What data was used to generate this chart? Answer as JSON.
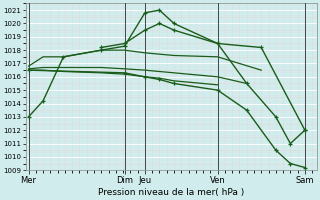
{
  "xlabel": "Pression niveau de la mer( hPa )",
  "bg_color": "#d0ecec",
  "grid_color": "#ffffff",
  "grid_minor_color": "#e8d8d8",
  "line_color": "#1a5c1a",
  "ylim": [
    1009,
    1021.5
  ],
  "yticks": [
    1009,
    1010,
    1011,
    1012,
    1013,
    1014,
    1015,
    1016,
    1017,
    1018,
    1019,
    1020,
    1021
  ],
  "xtick_labels": [
    "Mer",
    "Dim",
    "Jeu",
    "Ven",
    "Sam"
  ],
  "xtick_positions": [
    0.0,
    3.3,
    4.0,
    6.5,
    9.5
  ],
  "vline_positions": [
    0.0,
    3.3,
    4.0,
    6.5,
    9.5
  ],
  "xlim": [
    -0.1,
    9.9
  ],
  "series": [
    {
      "x": [
        0.0,
        0.5,
        1.2,
        2.5,
        3.3,
        4.0,
        4.5,
        5.0,
        6.5,
        8.0,
        9.5
      ],
      "y": [
        1013.0,
        1014.2,
        1017.5,
        1018.0,
        1018.3,
        1020.8,
        1021.0,
        1020.0,
        1018.5,
        1018.2,
        1012.0
      ],
      "marker": true,
      "lw": 1.0
    },
    {
      "x": [
        0.0,
        3.3,
        4.0,
        4.5,
        5.0,
        6.5,
        7.5,
        8.5,
        9.0,
        9.5
      ],
      "y": [
        1016.5,
        1016.3,
        1016.0,
        1015.8,
        1015.5,
        1015.0,
        1013.5,
        1010.5,
        1009.5,
        1009.2
      ],
      "marker": true,
      "lw": 1.0
    },
    {
      "x": [
        0.0,
        0.5,
        1.2,
        2.5,
        3.3,
        4.0,
        4.5,
        5.0,
        6.5,
        8.0
      ],
      "y": [
        1016.8,
        1017.5,
        1017.5,
        1018.0,
        1018.0,
        1017.8,
        1017.7,
        1017.6,
        1017.5,
        1016.5
      ],
      "marker": false,
      "lw": 0.9
    },
    {
      "x": [
        0.0,
        0.5,
        1.2,
        2.5,
        3.3,
        4.0,
        4.5,
        5.0,
        6.5,
        7.5
      ],
      "y": [
        1016.6,
        1016.7,
        1016.7,
        1016.7,
        1016.6,
        1016.5,
        1016.4,
        1016.3,
        1016.0,
        1015.5
      ],
      "marker": false,
      "lw": 0.9
    },
    {
      "x": [
        0.0,
        0.5,
        1.2,
        2.5,
        3.3,
        4.0,
        4.5,
        5.0,
        6.5
      ],
      "y": [
        1016.5,
        1016.5,
        1016.4,
        1016.3,
        1016.2,
        1016.0,
        1015.9,
        1015.7,
        1015.4
      ],
      "marker": false,
      "lw": 0.9
    },
    {
      "x": [
        2.5,
        3.3,
        4.0,
        4.5,
        5.0,
        6.5,
        7.5,
        8.5,
        9.0,
        9.5
      ],
      "y": [
        1018.2,
        1018.5,
        1019.5,
        1020.0,
        1019.5,
        1018.5,
        1015.5,
        1013.0,
        1011.0,
        1012.0
      ],
      "marker": true,
      "lw": 1.0
    }
  ]
}
